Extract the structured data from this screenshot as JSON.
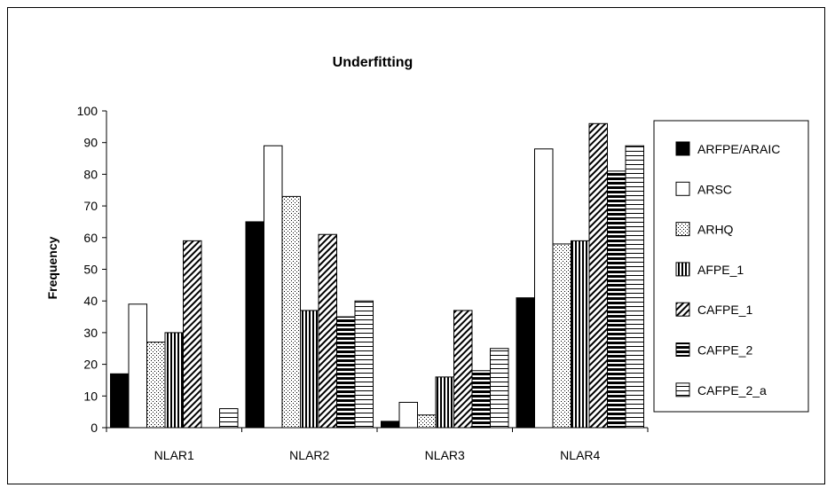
{
  "chart_data": {
    "type": "bar",
    "title": "Underfitting",
    "xlabel": "",
    "ylabel": "Frequency",
    "ylim": [
      0,
      100
    ],
    "yticks": [
      0,
      10,
      20,
      30,
      40,
      50,
      60,
      70,
      80,
      90,
      100
    ],
    "categories": [
      "NLAR1",
      "NLAR2",
      "NLAR3",
      "NLAR4"
    ],
    "legend_position": "right",
    "grid": false,
    "series": [
      {
        "name": "ARFPE/ARAIC",
        "pattern": "solid-black",
        "values": [
          17,
          65,
          2,
          41
        ]
      },
      {
        "name": "ARSC",
        "pattern": "white",
        "values": [
          39,
          89,
          8,
          88
        ]
      },
      {
        "name": "ARHQ",
        "pattern": "dots",
        "values": [
          27,
          73,
          4,
          58
        ]
      },
      {
        "name": "AFPE_1",
        "pattern": "vertical-lines",
        "values": [
          30,
          37,
          16,
          59
        ]
      },
      {
        "name": "CAFPE_1",
        "pattern": "diagonal-lines",
        "values": [
          59,
          61,
          37,
          96
        ]
      },
      {
        "name": "CAFPE_2",
        "pattern": "thick-horizontal-lines",
        "values": [
          0,
          35,
          18,
          81
        ]
      },
      {
        "name": "CAFPE_2_a",
        "pattern": "thin-horizontal-lines",
        "values": [
          6,
          40,
          25,
          89
        ]
      }
    ]
  }
}
